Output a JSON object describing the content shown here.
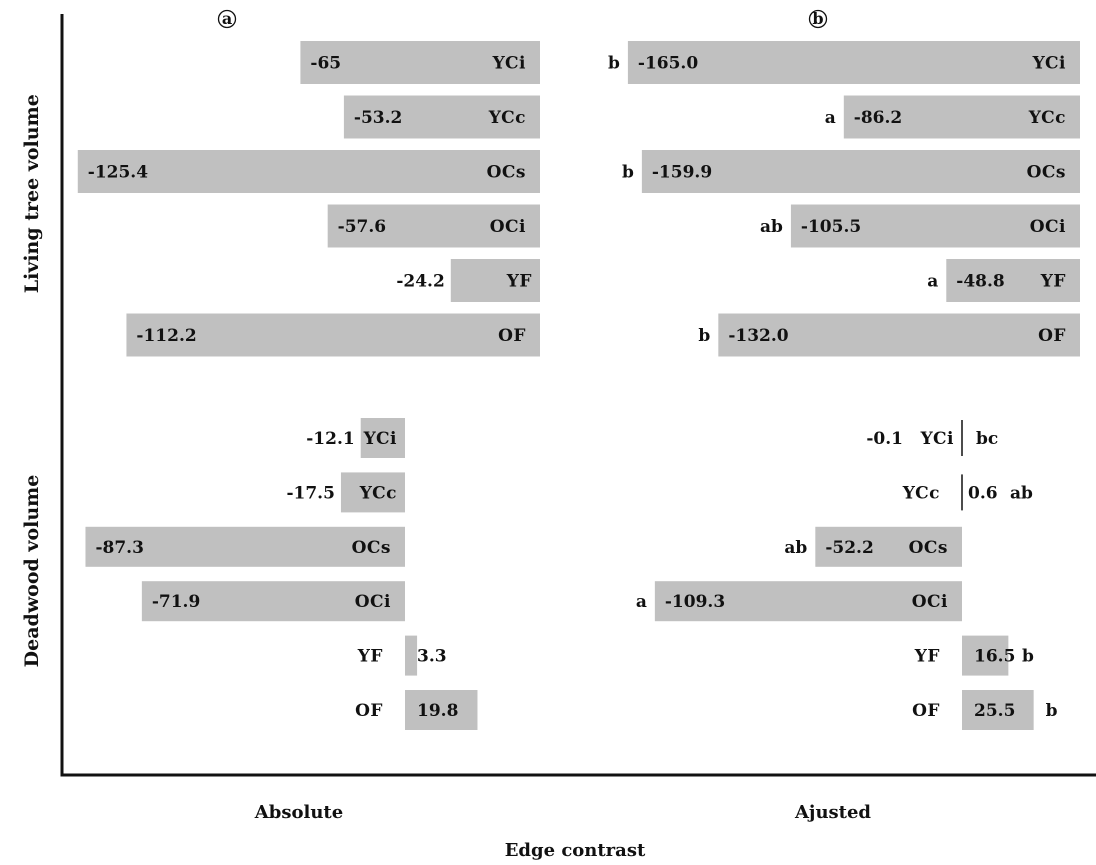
{
  "chart_data": {
    "type": "bar",
    "orientation": "horizontal",
    "xlabel": "Edge contrast",
    "colors": {
      "bar": "#c0c0c0",
      "axis": "#111111",
      "text": "#111111"
    },
    "groups": [
      "Living tree volume",
      "Deadwood volume"
    ],
    "panels": [
      {
        "tag": "a",
        "label": "Absolute",
        "bars": [
          {
            "group": "Living tree volume",
            "category": "YCi",
            "value": -65,
            "value_label": "-65",
            "sig": ""
          },
          {
            "group": "Living tree volume",
            "category": "YCc",
            "value": -53.2,
            "value_label": "-53.2",
            "sig": ""
          },
          {
            "group": "Living tree volume",
            "category": "OCs",
            "value": -125.4,
            "value_label": "-125.4",
            "sig": ""
          },
          {
            "group": "Living tree volume",
            "category": "OCi",
            "value": -57.6,
            "value_label": "-57.6",
            "sig": ""
          },
          {
            "group": "Living tree volume",
            "category": "YF",
            "value": -24.2,
            "value_label": "-24.2",
            "sig": ""
          },
          {
            "group": "Living tree volume",
            "category": "OF",
            "value": -112.2,
            "value_label": "-112.2",
            "sig": ""
          },
          {
            "group": "Deadwood volume",
            "category": "YCi",
            "value": -12.1,
            "value_label": "-12.1",
            "sig": ""
          },
          {
            "group": "Deadwood volume",
            "category": "YCc",
            "value": -17.5,
            "value_label": "-17.5",
            "sig": ""
          },
          {
            "group": "Deadwood volume",
            "category": "OCs",
            "value": -87.3,
            "value_label": "-87.3",
            "sig": ""
          },
          {
            "group": "Deadwood volume",
            "category": "OCi",
            "value": -71.9,
            "value_label": "-71.9",
            "sig": ""
          },
          {
            "group": "Deadwood volume",
            "category": "YF",
            "value": 3.3,
            "value_label": "3.3",
            "sig": ""
          },
          {
            "group": "Deadwood volume",
            "category": "OF",
            "value": 19.8,
            "value_label": "19.8",
            "sig": ""
          }
        ]
      },
      {
        "tag": "b",
        "label": "Ajusted",
        "bars": [
          {
            "group": "Living tree volume",
            "category": "YCi",
            "value": -165.0,
            "value_label": "-165.0",
            "sig": "b"
          },
          {
            "group": "Living tree volume",
            "category": "YCc",
            "value": -86.2,
            "value_label": "-86.2",
            "sig": "a"
          },
          {
            "group": "Living tree volume",
            "category": "OCs",
            "value": -159.9,
            "value_label": "-159.9",
            "sig": "b"
          },
          {
            "group": "Living tree volume",
            "category": "OCi",
            "value": -105.5,
            "value_label": "-105.5",
            "sig": "ab"
          },
          {
            "group": "Living tree volume",
            "category": "YF",
            "value": -48.8,
            "value_label": "-48.8",
            "sig": "a"
          },
          {
            "group": "Living tree volume",
            "category": "OF",
            "value": -132.0,
            "value_label": "-132.0",
            "sig": "b"
          },
          {
            "group": "Deadwood volume",
            "category": "YCi",
            "value": -0.1,
            "value_label": "-0.1",
            "sig": "bc"
          },
          {
            "group": "Deadwood volume",
            "category": "YCc",
            "value": 0.6,
            "value_label": "0.6",
            "sig": "ab"
          },
          {
            "group": "Deadwood volume",
            "category": "OCs",
            "value": -52.2,
            "value_label": "-52.2",
            "sig": "ab"
          },
          {
            "group": "Deadwood volume",
            "category": "OCi",
            "value": -109.3,
            "value_label": "-109.3",
            "sig": "a"
          },
          {
            "group": "Deadwood volume",
            "category": "YF",
            "value": 16.5,
            "value_label": "16.5",
            "sig": "b"
          },
          {
            "group": "Deadwood volume",
            "category": "OF",
            "value": 25.5,
            "value_label": "25.5",
            "sig": "b"
          }
        ]
      }
    ]
  }
}
